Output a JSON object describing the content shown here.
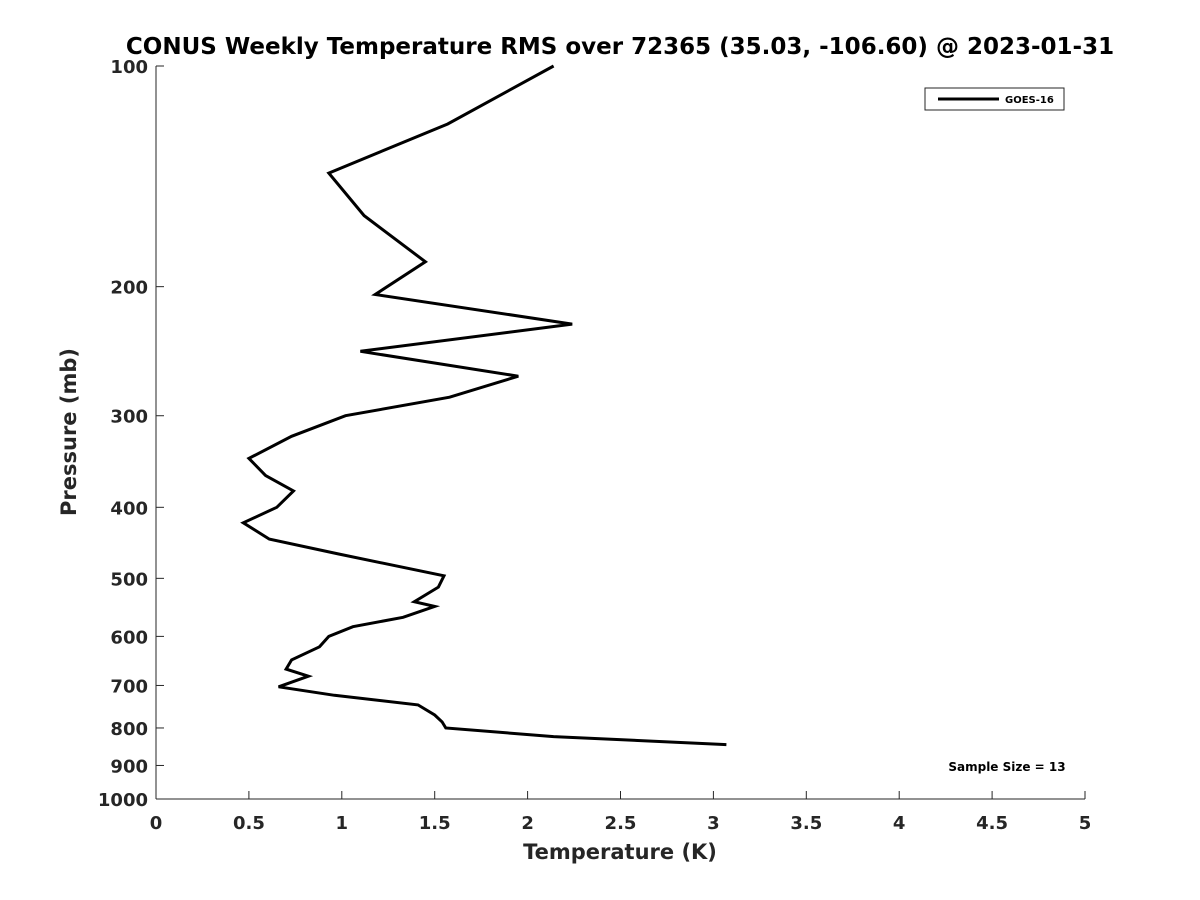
{
  "chart_data": {
    "type": "line",
    "title": "CONUS Weekly Temperature RMS over 72365 (35.03, -106.60) @ 2023-01-31",
    "xlabel": "Temperature (K)",
    "ylabel": "Pressure (mb)",
    "xlim": [
      0,
      5
    ],
    "ylim": [
      100,
      1000
    ],
    "y_scale": "log",
    "y_reversed": true,
    "xticks": [
      "0",
      "0.5",
      "1",
      "1.5",
      "2",
      "2.5",
      "3",
      "3.5",
      "4",
      "4.5",
      "5"
    ],
    "yticks": [
      "100",
      "200",
      "300",
      "400",
      "500",
      "600",
      "700",
      "800",
      "900",
      "1000"
    ],
    "legend_position": "top-right",
    "grid": false,
    "annotation": "Sample Size = 13",
    "series": [
      {
        "name": "GOES-16",
        "color": "#000000",
        "x": [
          2.14,
          1.57,
          0.93,
          1.12,
          1.45,
          1.18,
          2.24,
          1.1,
          1.95,
          1.58,
          1.02,
          0.73,
          0.5,
          0.59,
          0.74,
          0.65,
          0.47,
          0.61,
          0.98,
          1.55,
          1.52,
          1.39,
          1.5,
          1.33,
          1.06,
          0.93,
          0.88,
          0.73,
          0.7,
          0.82,
          0.66,
          0.96,
          1.41,
          1.5,
          1.54,
          1.56,
          2.14,
          3.07
        ],
        "y": [
          100,
          120,
          140,
          160,
          185,
          205,
          225,
          245,
          265,
          283,
          300,
          320,
          343,
          362,
          380,
          400,
          420,
          442,
          463,
          496,
          514,
          538,
          546,
          565,
          582,
          600,
          620,
          646,
          665,
          680,
          703,
          722,
          744,
          768,
          785,
          800,
          822,
          843
        ]
      }
    ]
  }
}
